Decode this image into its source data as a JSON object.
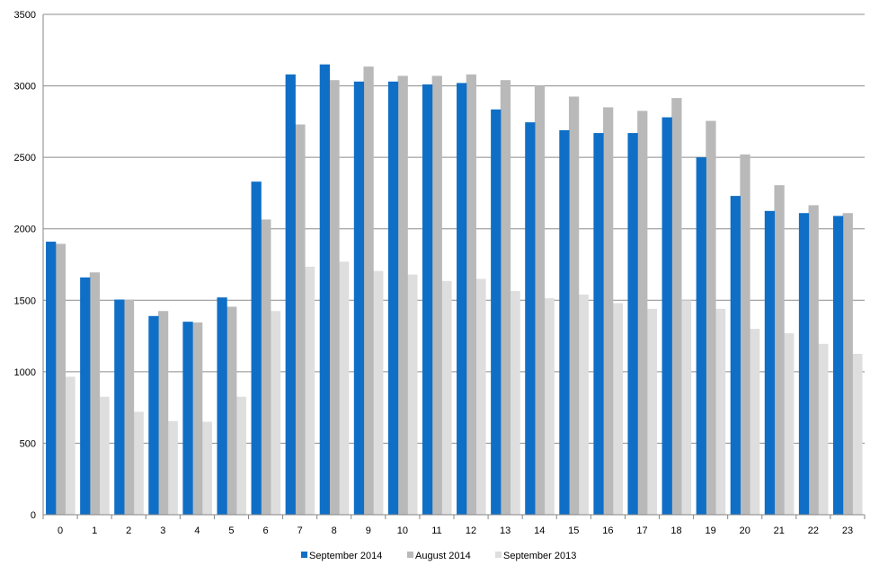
{
  "chart_data": {
    "type": "bar",
    "title": "",
    "xlabel": "",
    "ylabel": "",
    "ylim": [
      0,
      3500
    ],
    "yticks": [
      0,
      500,
      1000,
      1500,
      2000,
      2500,
      3000,
      3500
    ],
    "grid": true,
    "legend_position": "bottom",
    "categories": [
      "0",
      "1",
      "2",
      "3",
      "4",
      "5",
      "6",
      "7",
      "8",
      "9",
      "10",
      "11",
      "12",
      "13",
      "14",
      "15",
      "16",
      "17",
      "18",
      "19",
      "20",
      "21",
      "22",
      "23"
    ],
    "series": [
      {
        "name": "September 2014",
        "color": "#0f6fc6",
        "values": [
          1910,
          1660,
          1505,
          1390,
          1350,
          1520,
          2330,
          3080,
          3150,
          3030,
          3030,
          3010,
          3020,
          2835,
          2745,
          2690,
          2670,
          2670,
          2780,
          2500,
          2230,
          2125,
          2110,
          2090
        ]
      },
      {
        "name": "August 2014",
        "color": "#b9b9b9",
        "values": [
          1895,
          1695,
          1505,
          1425,
          1345,
          1455,
          2065,
          2730,
          3040,
          3135,
          3070,
          3070,
          3080,
          3040,
          3000,
          2925,
          2850,
          2825,
          2915,
          2755,
          2520,
          2305,
          2165,
          2110
        ]
      },
      {
        "name": "September 2013",
        "color": "#dedede",
        "values": [
          965,
          825,
          720,
          655,
          650,
          825,
          1425,
          1735,
          1770,
          1705,
          1680,
          1635,
          1650,
          1565,
          1515,
          1540,
          1480,
          1440,
          1500,
          1440,
          1300,
          1270,
          1195,
          1125
        ]
      }
    ]
  }
}
